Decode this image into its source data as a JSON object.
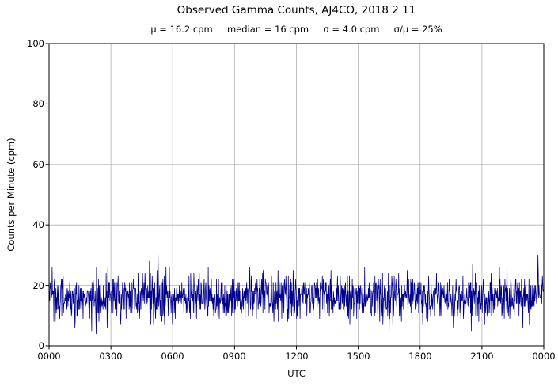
{
  "title": "Observed Gamma Counts, AJ4CO, 2018 2 11",
  "subtitle": "μ = 16.2 cpm     median = 16 cpm     σ = 4.0 cpm     σ/μ = 25%",
  "chart_data": {
    "type": "line",
    "title": "Observed Gamma Counts, AJ4CO, 2018 2 11",
    "subtitle_stats": {
      "mean_cpm": 16.2,
      "median_cpm": 16,
      "sigma_cpm": 4.0,
      "sigma_over_mu_pct": 25
    },
    "xlabel": "UTC",
    "ylabel": "Counts per Minute (cpm)",
    "ylim": [
      0,
      100
    ],
    "xlim_minutes": [
      0,
      1440
    ],
    "yticks": [
      "0",
      "20",
      "40",
      "60",
      "80",
      "100"
    ],
    "xticks": [
      "0000",
      "0300",
      "0600",
      "0900",
      "1200",
      "1500",
      "1800",
      "2100",
      "0000"
    ],
    "grid": true,
    "legend": "none",
    "line_color": "#00008b",
    "grid_color": "#b0b0b0",
    "series": {
      "name": "observed gamma counts",
      "n_points": 1440,
      "distribution": "normal-integer-counts",
      "mean": 16.2,
      "sigma": 4.0,
      "min": 4,
      "max": 30,
      "seed": 20180211
    }
  }
}
